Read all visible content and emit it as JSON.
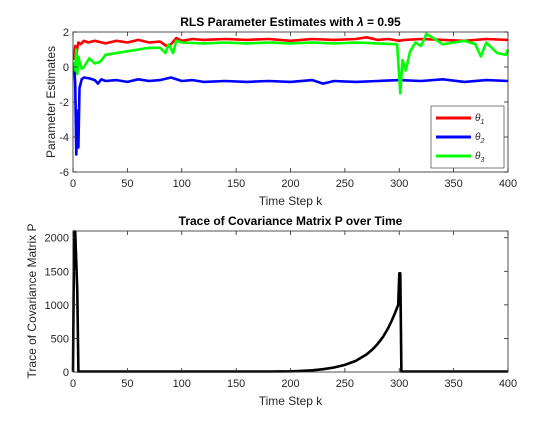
{
  "chart_data": [
    {
      "type": "line",
      "title": "RLS Parameter Estimates with λ = 0.95",
      "title_prefix": "RLS Parameter Estimates with ",
      "title_lambda": "λ",
      "title_suffix": " = 0.95",
      "xlabel": "Time Step k",
      "ylabel": "Parameter Estimates",
      "xlim": [
        0,
        400
      ],
      "ylim": [
        -6,
        2
      ],
      "xticks": [
        0,
        50,
        100,
        150,
        200,
        250,
        300,
        350,
        400
      ],
      "yticks": [
        -6,
        -4,
        -2,
        0,
        2
      ],
      "grid": false,
      "legend_position": "right",
      "series": [
        {
          "name": "θ1",
          "symbol": "θ",
          "sub": "1",
          "color": "#ff0000",
          "x": [
            1,
            2,
            3,
            4,
            5,
            7,
            10,
            14,
            20,
            30,
            40,
            50,
            60,
            70,
            80,
            86,
            90,
            95,
            100,
            110,
            120,
            140,
            160,
            180,
            200,
            220,
            240,
            260,
            270,
            280,
            290,
            300,
            305,
            320,
            340,
            360,
            380,
            400
          ],
          "y": [
            0.4,
            1.2,
            0.6,
            1.1,
            1.4,
            1.3,
            1.5,
            1.4,
            1.5,
            1.35,
            1.5,
            1.4,
            1.55,
            1.4,
            1.45,
            1.2,
            1.3,
            1.65,
            1.5,
            1.6,
            1.55,
            1.6,
            1.55,
            1.6,
            1.5,
            1.6,
            1.55,
            1.6,
            1.7,
            1.55,
            1.6,
            1.5,
            1.55,
            1.6,
            1.55,
            1.5,
            1.6,
            1.55
          ]
        },
        {
          "name": "θ2",
          "symbol": "θ",
          "sub": "2",
          "color": "#0000ff",
          "x": [
            1,
            2,
            3,
            4,
            5,
            6,
            8,
            10,
            15,
            20,
            23,
            26,
            30,
            40,
            50,
            60,
            70,
            80,
            90,
            100,
            110,
            120,
            140,
            160,
            180,
            200,
            220,
            230,
            240,
            260,
            280,
            300,
            320,
            340,
            360,
            380,
            400
          ],
          "y": [
            0.2,
            -0.9,
            -5.0,
            -2.5,
            -4.6,
            -1.2,
            -0.7,
            -0.6,
            -0.65,
            -0.75,
            -0.95,
            -0.7,
            -0.8,
            -0.75,
            -0.85,
            -0.7,
            -0.8,
            -0.75,
            -0.6,
            -0.8,
            -0.75,
            -0.85,
            -0.8,
            -0.85,
            -0.8,
            -0.85,
            -0.75,
            -0.95,
            -0.8,
            -0.85,
            -0.8,
            -0.75,
            -0.8,
            -0.7,
            -0.85,
            -0.75,
            -0.8
          ]
        },
        {
          "name": "θ3",
          "symbol": "θ",
          "sub": "3",
          "color": "#00ff00",
          "x": [
            1,
            2,
            3,
            4,
            5,
            6,
            8,
            10,
            15,
            20,
            25,
            30,
            40,
            50,
            60,
            70,
            80,
            85,
            88,
            92,
            95,
            100,
            120,
            140,
            160,
            180,
            200,
            220,
            240,
            260,
            280,
            298,
            301,
            303,
            306,
            310,
            315,
            320,
            325,
            330,
            340,
            350,
            360,
            370,
            375,
            380,
            390,
            398,
            400
          ],
          "y": [
            0.3,
            -0.2,
            1.0,
            -0.4,
            0.6,
            0.3,
            -0.1,
            0.0,
            0.5,
            0.2,
            0.3,
            0.7,
            0.8,
            0.9,
            1.0,
            1.1,
            1.1,
            0.8,
            1.3,
            0.8,
            1.5,
            1.4,
            1.35,
            1.4,
            1.35,
            1.4,
            1.35,
            1.4,
            1.35,
            1.4,
            1.35,
            1.3,
            -1.5,
            0.4,
            -0.2,
            0.9,
            1.4,
            1.2,
            1.9,
            1.7,
            1.3,
            1.4,
            1.5,
            1.3,
            0.6,
            1.4,
            0.8,
            0.7,
            1.0
          ]
        }
      ]
    },
    {
      "type": "line",
      "title": "Trace of Covariance Matrix P over Time",
      "xlabel": "Time Step k",
      "ylabel": "Trace of Covariance Matrix P",
      "xlim": [
        0,
        400
      ],
      "ylim": [
        0,
        2100
      ],
      "xticks": [
        0,
        50,
        100,
        150,
        200,
        250,
        300,
        350,
        400
      ],
      "yticks": [
        0,
        500,
        1000,
        1500,
        2000
      ],
      "grid": false,
      "series": [
        {
          "color": "#000000",
          "x": [
            0,
            1,
            2,
            4,
            5,
            10,
            50,
            100,
            150,
            180,
            200,
            210,
            220,
            230,
            240,
            250,
            260,
            270,
            275,
            280,
            285,
            290,
            293,
            296,
            299,
            300,
            301,
            302,
            350,
            400
          ],
          "y": [
            0,
            2100,
            2100,
            1200,
            0,
            0,
            0,
            0,
            2,
            5,
            10,
            16,
            26,
            42,
            67,
            105,
            165,
            262,
            330,
            415,
            520,
            660,
            760,
            875,
            1000,
            1470,
            1470,
            0,
            0,
            0
          ]
        }
      ]
    }
  ]
}
